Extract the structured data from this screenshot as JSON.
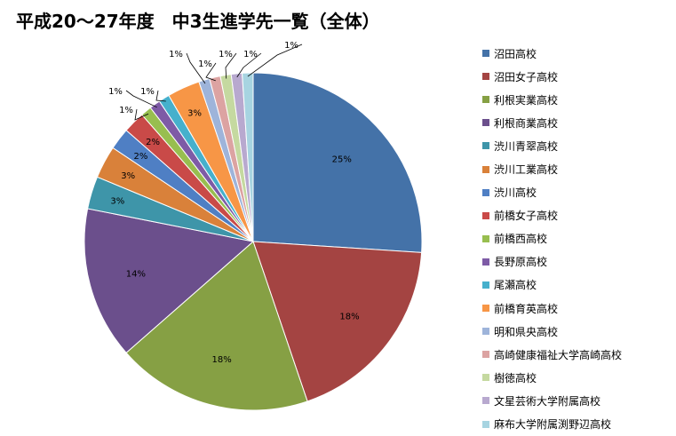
{
  "chart_data": {
    "type": "pie",
    "title": "平成20～27年度　中3生進学先一覧（全体）",
    "slices": [
      {
        "name": "沼田高校",
        "value": 25,
        "label": "25%",
        "color": "#4472A8"
      },
      {
        "name": "沼田女子高校",
        "value": 18,
        "label": "18%",
        "color": "#A44442"
      },
      {
        "name": "利根実業高校",
        "value": 18,
        "label": "18%",
        "color": "#86A044"
      },
      {
        "name": "利根商業高校",
        "value": 14,
        "label": "14%",
        "color": "#6B4F8C"
      },
      {
        "name": "渋川青翠高校",
        "value": 3,
        "label": "3%",
        "color": "#3E95A9"
      },
      {
        "name": "渋川工業高校",
        "value": 3,
        "label": "3%",
        "color": "#D9813A"
      },
      {
        "name": "渋川高校",
        "value": 2,
        "label": "2%",
        "color": "#4F7FC4"
      },
      {
        "name": "前橋女子高校",
        "value": 2,
        "label": "2%",
        "color": "#C94A48"
      },
      {
        "name": "前橋西高校",
        "value": 1,
        "label": "1%",
        "color": "#98BE4F"
      },
      {
        "name": "長野原高校",
        "value": 1,
        "label": "1%",
        "color": "#7E5BA6"
      },
      {
        "name": "尾瀬高校",
        "value": 1,
        "label": "1%",
        "color": "#46B0CC"
      },
      {
        "name": "前橋育英高校",
        "value": 3,
        "label": "3%",
        "color": "#F79646"
      },
      {
        "name": "明和県央高校",
        "value": 1,
        "label": "1%",
        "color": "#9EB4DA"
      },
      {
        "name": "高崎健康福祉大学高崎高校",
        "value": 1,
        "label": "1%",
        "color": "#DCA3A2"
      },
      {
        "name": "樹徳高校",
        "value": 1,
        "label": "1%",
        "color": "#C5D9A0"
      },
      {
        "name": "文星芸術大学附属高校",
        "value": 1,
        "label": "1%",
        "color": "#B8A9CF"
      },
      {
        "name": "麻布大学附属渕野辺高校",
        "value": 1,
        "label": "1%",
        "color": "#A7D4E1"
      }
    ],
    "legend_position": "right"
  }
}
